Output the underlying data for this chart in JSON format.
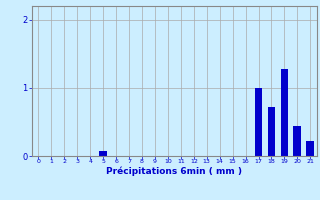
{
  "xlabel": "Précipitations 6min ( mm )",
  "background_color": "#cceeff",
  "bar_color": "#0000cc",
  "grid_color": "#aaaaaa",
  "axis_color": "#888888",
  "ylim": [
    0,
    2.2
  ],
  "xlim": [
    -0.5,
    21.5
  ],
  "yticks": [
    0,
    1,
    2
  ],
  "xtick_labels": [
    "0",
    "1",
    "2",
    "3",
    "4",
    "5",
    "6",
    "7",
    "8",
    "9",
    "10",
    "11",
    "12",
    "13",
    "14",
    "15",
    "16",
    "17",
    "18",
    "19",
    "20",
    "21"
  ],
  "values": [
    0,
    0,
    0,
    0,
    0,
    0.08,
    0,
    0,
    0,
    0,
    0,
    0,
    0,
    0,
    0,
    0,
    0,
    1.0,
    0.72,
    1.28,
    0.44,
    0.22
  ]
}
